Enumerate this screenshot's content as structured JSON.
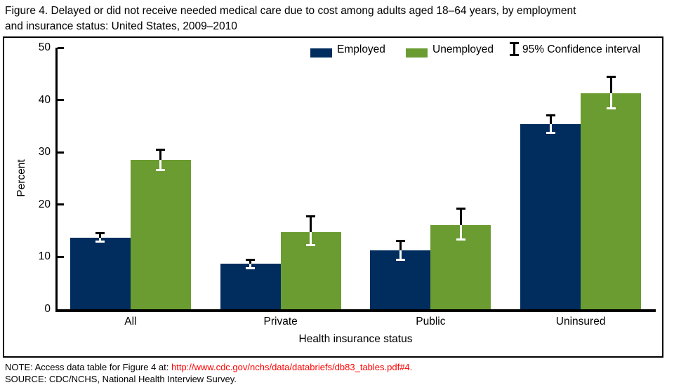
{
  "title": {
    "line1": "Figure 4. Delayed or did not receive needed medical care due to cost among adults aged 18–64 years, by employment",
    "line2": "and insurance status: United States, 2009–2010"
  },
  "legend": {
    "items": [
      {
        "label": "Employed",
        "color": "#012d5e"
      },
      {
        "label": "Unemployed",
        "color": "#6b9c31"
      },
      {
        "label": "95% Confidence interval",
        "type": "error-bar"
      }
    ]
  },
  "chart_data": {
    "type": "bar",
    "title": "Delayed or did not receive needed medical care due to cost among adults aged 18–64 years, by employment and insurance status: United States, 2009–2010",
    "categories": [
      "All",
      "Private",
      "Public",
      "Uninsured"
    ],
    "series": [
      {
        "name": "Employed",
        "color": "#012d5e",
        "values": [
          13.7,
          8.7,
          11.2,
          35.4
        ],
        "ci_lower": [
          13.0,
          7.9,
          9.4,
          33.7
        ],
        "ci_upper": [
          14.5,
          9.5,
          13.1,
          37.1
        ]
      },
      {
        "name": "Unemployed",
        "color": "#6b9c31",
        "values": [
          28.5,
          14.8,
          16.1,
          41.3
        ],
        "ci_lower": [
          26.6,
          12.3,
          13.4,
          38.4
        ],
        "ci_upper": [
          30.5,
          17.7,
          19.3,
          44.4
        ]
      }
    ],
    "xlabel": "Health insurance status",
    "ylabel": "Percent",
    "ylim": [
      0,
      50
    ],
    "yticks": [
      0,
      10,
      20,
      30,
      40,
      50
    ],
    "grid": false,
    "legend_position": "top-inside",
    "error_bars": "95% confidence interval, drawn black above bar top and white inside bar"
  },
  "notes": {
    "note_prefix": "NOTE: Access data table for Figure 4 at: ",
    "note_link": "http://www.cdc.gov/nchs/data/databriefs/db83_tables.pdf#4",
    "note_suffix": ".",
    "link_color": "#ff0000",
    "source": "SOURCE: CDC/NCHS, National Health Interview Survey."
  }
}
